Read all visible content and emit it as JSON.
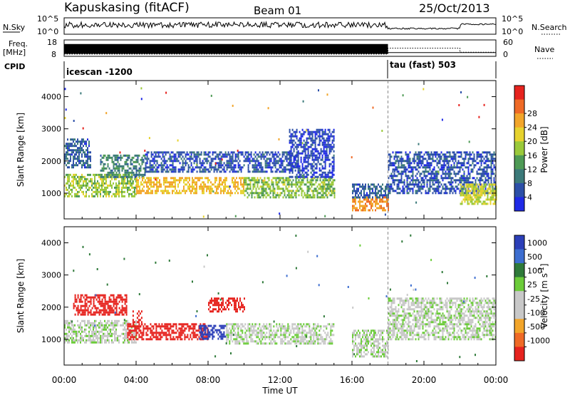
{
  "header": {
    "station": "Kapuskasing (fitACF)",
    "beam": "Beam 01",
    "date": "25/Oct/2013"
  },
  "top_panels": {
    "nsky_label": "N.Sky",
    "nsky_ticks": [
      "10^5",
      "10^0"
    ],
    "nsearch_label": "N.Search",
    "nsearch_ticks": [
      "10^5",
      "10^0"
    ],
    "freq_label": "Freq.",
    "freq_unit": "[MHz]",
    "freq_ticks": [
      "18",
      "8"
    ],
    "nave_label": "Nave",
    "nave_ticks": [
      "60",
      "0"
    ],
    "cpid_label": "CPID",
    "cpid_modes": [
      {
        "name": "icescan -1200",
        "start_hour": 0,
        "end_hour": 18
      },
      {
        "name": "tau (fast) 503",
        "start_hour": 18,
        "end_hour": 24
      }
    ],
    "freq_mhz": [
      {
        "start_hour": 0,
        "end_hour": 18,
        "value": 12.5
      },
      {
        "start_hour": 18,
        "end_hour": 24,
        "value": 10.3
      }
    ],
    "nave": [
      {
        "start_hour": 0,
        "end_hour": 18,
        "value": 8
      },
      {
        "start_hour": 18,
        "end_hour": 22,
        "value": 30
      },
      {
        "start_hour": 22,
        "end_hour": 24,
        "value": 15
      }
    ]
  },
  "chart_data": [
    {
      "type": "heatmap",
      "name": "power",
      "ylabel": "Slant Range [km]",
      "xlabel": "Time UT",
      "xlim": [
        0,
        24
      ],
      "ylim": [
        200,
        4500
      ],
      "yticks": [
        "1000",
        "2000",
        "3000",
        "4000"
      ],
      "xticks": [
        "00:00",
        "04:00",
        "08:00",
        "12:00",
        "16:00",
        "20:00",
        "00:00"
      ],
      "colorbar_label": "Power [dB]",
      "colorbar_ticks": [
        "4",
        "8",
        "12",
        "16",
        "20",
        "24",
        "28"
      ],
      "colorbar_range": [
        0,
        30
      ],
      "colors": [
        "#1f2ae6",
        "#2c4fa8",
        "#3c7a7a",
        "#4e9a55",
        "#9ac93a",
        "#e6d22e",
        "#f2a52a",
        "#ef6a26",
        "#e6231e"
      ],
      "regions": [
        {
          "t0": 0.0,
          "t1": 4.0,
          "r0": 900,
          "r1": 1600,
          "value": 15
        },
        {
          "t0": 0.0,
          "t1": 1.5,
          "r0": 1800,
          "r1": 2700,
          "value": 6
        },
        {
          "t0": 2.0,
          "t1": 4.5,
          "r0": 1500,
          "r1": 2200,
          "value": 9
        },
        {
          "t0": 4.0,
          "t1": 10.0,
          "r0": 1000,
          "r1": 1500,
          "value": 20
        },
        {
          "t0": 4.5,
          "t1": 13.0,
          "r0": 1700,
          "r1": 2300,
          "value": 5
        },
        {
          "t0": 10.0,
          "t1": 15.0,
          "r0": 900,
          "r1": 1500,
          "value": 14
        },
        {
          "t0": 12.5,
          "t1": 15.0,
          "r0": 1500,
          "r1": 3000,
          "value": 4
        },
        {
          "t0": 16.0,
          "t1": 18.0,
          "r0": 500,
          "r1": 900,
          "value": 23
        },
        {
          "t0": 16.0,
          "t1": 18.0,
          "r0": 900,
          "r1": 1300,
          "value": 6
        },
        {
          "t0": 18.0,
          "t1": 24.0,
          "r0": 1000,
          "r1": 2300,
          "value": 5
        },
        {
          "t0": 22.0,
          "t1": 24.0,
          "r0": 700,
          "r1": 1300,
          "value": 17
        }
      ]
    },
    {
      "type": "heatmap",
      "name": "velocity",
      "ylabel": "Slant Range [km]",
      "xlabel": "Time UT",
      "xlim": [
        0,
        24
      ],
      "ylim": [
        200,
        4500
      ],
      "yticks": [
        "1000",
        "2000",
        "3000",
        "4000"
      ],
      "xticks": [
        "00:00",
        "04:00",
        "08:00",
        "12:00",
        "16:00",
        "20:00",
        "00:00"
      ],
      "colorbar_label": "Velocity [m s^-1]",
      "colorbar_ticks": [
        "1000",
        "500",
        "100",
        "25",
        "-25",
        "-100",
        "-500",
        "-1000"
      ],
      "colors": [
        "#2c3fb8",
        "#3d6ed0",
        "#2f7a3a",
        "#6ccc3a",
        "#c8c8c8",
        "#c8c8c8",
        "#f2a52a",
        "#ef6a26",
        "#e6231e"
      ],
      "regions": [
        {
          "t0": 0.0,
          "t1": 4.0,
          "r0": 900,
          "r1": 1600,
          "value": 0
        },
        {
          "t0": 0.5,
          "t1": 3.5,
          "r0": 1800,
          "r1": 2400,
          "value": -150
        },
        {
          "t0": 3.5,
          "t1": 8.0,
          "r0": 1000,
          "r1": 1500,
          "value": -250
        },
        {
          "t0": 3.8,
          "t1": 4.3,
          "r0": 1400,
          "r1": 1900,
          "value": -900
        },
        {
          "t0": 7.5,
          "t1": 9.0,
          "r0": 1050,
          "r1": 1450,
          "value": 60
        },
        {
          "t0": 8.0,
          "t1": 10.0,
          "r0": 1900,
          "r1": 2300,
          "value": -150
        },
        {
          "t0": 9.0,
          "t1": 15.0,
          "r0": 900,
          "r1": 1500,
          "value": 0
        },
        {
          "t0": 16.0,
          "t1": 18.0,
          "r0": 500,
          "r1": 1300,
          "value": 0
        },
        {
          "t0": 18.0,
          "t1": 24.0,
          "r0": 1000,
          "r1": 2300,
          "value": 0
        }
      ]
    }
  ]
}
